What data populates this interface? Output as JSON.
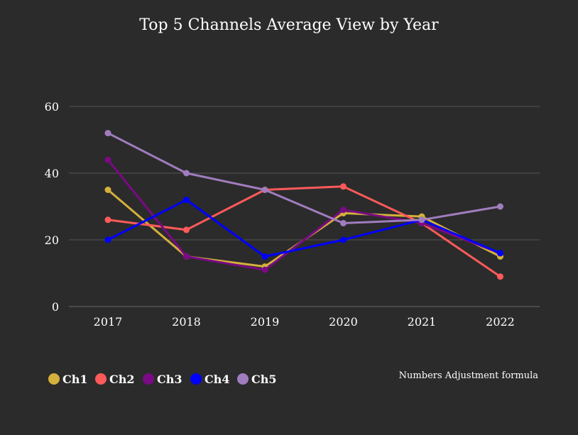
{
  "chart_data": {
    "type": "line",
    "title": "Top 5 Channels Average View by Year",
    "xlabel": "",
    "ylabel": "",
    "categories": [
      "2017",
      "2018",
      "2019",
      "2020",
      "2021",
      "2022"
    ],
    "ylim": [
      0,
      60
    ],
    "yticks": [
      "0",
      "20",
      "40",
      "60"
    ],
    "grid": true,
    "legend_position": "bottom-left",
    "annotation": "Numbers Adjustment  formula",
    "series": [
      {
        "name": "Ch1",
        "color": "#d4b03c",
        "values": [
          35,
          15,
          12,
          28,
          27,
          15
        ]
      },
      {
        "name": "Ch2",
        "color": "#ff5a5a",
        "values": [
          26,
          23,
          35,
          36,
          25,
          9
        ]
      },
      {
        "name": "Ch3",
        "color": "#7a0a85",
        "values": [
          44,
          15,
          11,
          29,
          25,
          16
        ]
      },
      {
        "name": "Ch4",
        "color": "#0000ff",
        "values": [
          20,
          32,
          15,
          20,
          26,
          16
        ]
      },
      {
        "name": "Ch5",
        "color": "#a07dbe",
        "values": [
          52,
          40,
          35,
          25,
          26,
          30
        ]
      }
    ]
  },
  "colors": {
    "background": "#2b2b2b",
    "gridline": "#555555",
    "text": "#ffffff"
  }
}
